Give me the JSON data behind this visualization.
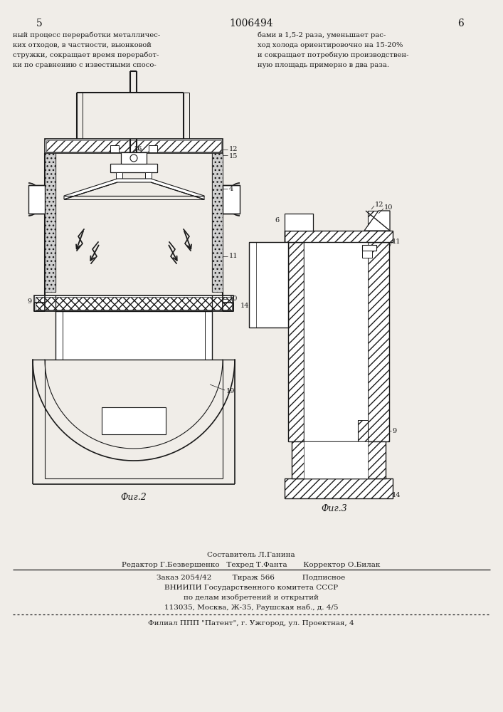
{
  "page_number_left": "5",
  "page_number_center": "1006494",
  "page_number_right": "6",
  "text_left_col": [
    "ный процесс переработки металличес-",
    "ких отходов, в частности, вьюнковой",
    "стружки, сокращает время переработ-",
    "ки по сравнению с известными спосо-"
  ],
  "text_right_col": [
    "бами в 1,5-2 раза, уменьшает рас-",
    "ход холода ориентировочно на 15-20%",
    "и сокращает потребную производствен-",
    "ную площадь примерно в два раза."
  ],
  "fig2_label": "Фиг.2",
  "fig3_label": "Фиг.3",
  "footer_lines": [
    "Составитель Л.Ганина",
    "Редактор Г.Безвершенко   Техред Т.Фанта       Корректор О.Билак",
    "Заказ 2054/42         Тираж 566            Подписное",
    "ВНИИПИ Государственного комитета СССР",
    "по делам изобретений и открытий",
    "113035, Москва, Ж-35, Раушская наб., д. 4/5",
    "Филиал ППП \"Патент\", г. Ужгород, ул. Проектная, 4"
  ],
  "bg_color": "#f0ede8",
  "line_color": "#1a1a1a"
}
